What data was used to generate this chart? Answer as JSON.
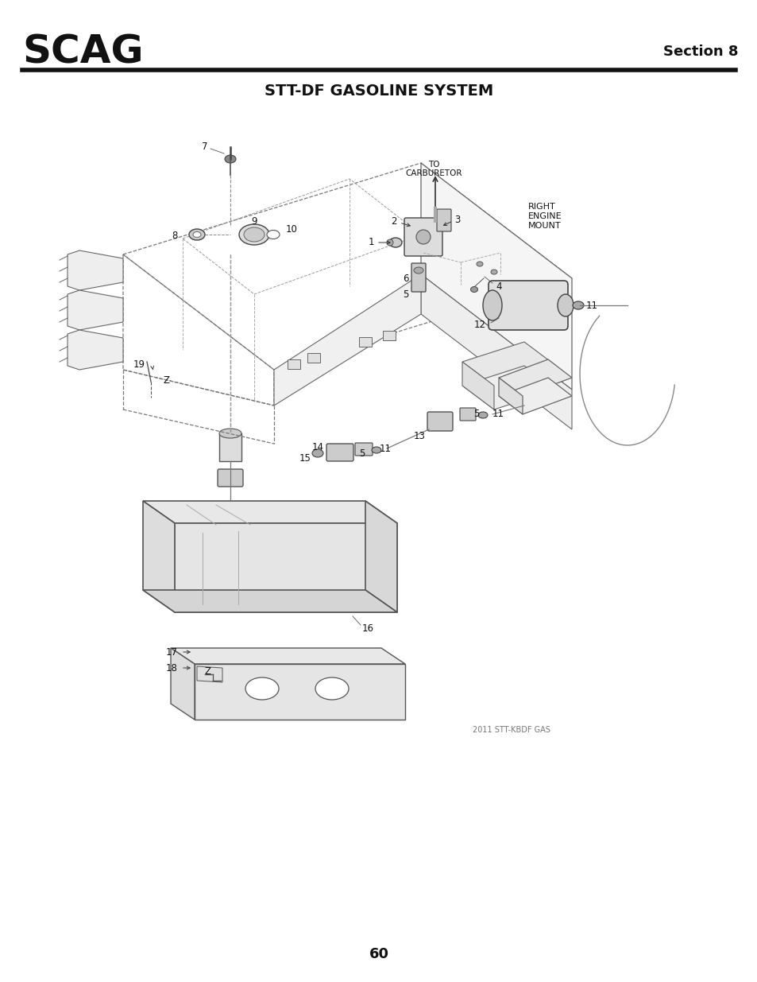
{
  "title": "STT-DF GASOLINE SYSTEM",
  "section": "Section 8",
  "page_number": "60",
  "logo_text": "SCAG",
  "copyright_text": "2011 STT-KBDF GAS",
  "background_color": "#ffffff",
  "text_color": "#1a1a1a",
  "line_color": "#555555",
  "edge_color": "#333333"
}
